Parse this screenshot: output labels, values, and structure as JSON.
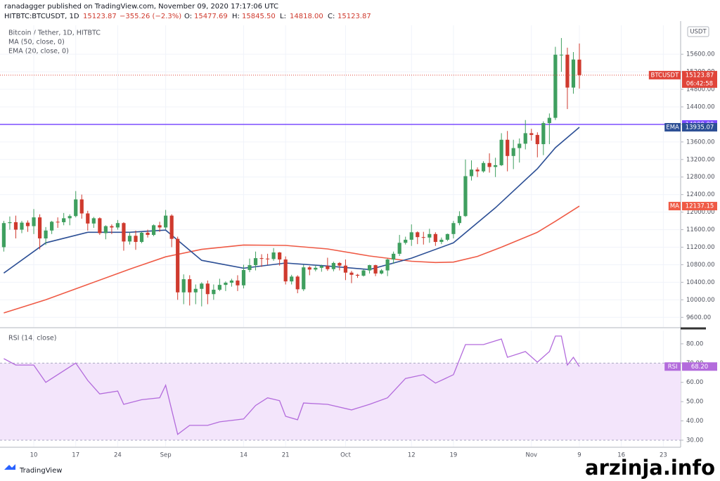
{
  "header": {
    "published": "ranadagger published on TradingView.com, November 09, 2020 17:17:06 UTC",
    "symbol": "HITBTC:BTCUSDT, 1D",
    "last": "15123.87",
    "change": "−355.26 (−2.3%)",
    "fields": [
      {
        "k": "O:",
        "v": "15477.69"
      },
      {
        "k": "H:",
        "v": "15845.50"
      },
      {
        "k": "L:",
        "v": "14818.00"
      },
      {
        "k": "C:",
        "v": "15123.87"
      }
    ]
  },
  "chart_data": {
    "type": "candlestick",
    "title": "Bitcoin / Tether, 1D, HITBTC",
    "currency": "USDT",
    "countdown": "06:42:58",
    "up_color": "#3f9f5f",
    "down_color": "#cf3a2e",
    "grid": true,
    "x": [
      "08-05",
      "08-06",
      "08-07",
      "08-08",
      "08-09",
      "08-10",
      "08-11",
      "08-12",
      "08-13",
      "08-14",
      "08-15",
      "08-16",
      "08-17",
      "08-18",
      "08-19",
      "08-20",
      "08-21",
      "08-22",
      "08-23",
      "08-24",
      "08-25",
      "08-26",
      "08-27",
      "08-28",
      "08-29",
      "08-30",
      "08-31",
      "09-01",
      "09-02",
      "09-03",
      "09-04",
      "09-05",
      "09-06",
      "09-07",
      "09-08",
      "09-09",
      "09-10",
      "09-11",
      "09-12",
      "09-13",
      "09-14",
      "09-15",
      "09-16",
      "09-17",
      "09-18",
      "09-19",
      "09-20",
      "09-21",
      "09-22",
      "09-23",
      "09-24",
      "09-25",
      "09-26",
      "09-27",
      "09-28",
      "09-29",
      "09-30",
      "10-01",
      "10-02",
      "10-03",
      "10-04",
      "10-05",
      "10-06",
      "10-07",
      "10-08",
      "10-09",
      "10-10",
      "10-11",
      "10-12",
      "10-13",
      "10-14",
      "10-15",
      "10-16",
      "10-17",
      "10-18",
      "10-19",
      "10-20",
      "10-21",
      "10-22",
      "10-23",
      "10-24",
      "10-25",
      "10-26",
      "10-27",
      "10-28",
      "10-29",
      "10-30",
      "10-31",
      "11-01",
      "11-02",
      "11-03",
      "11-04",
      "11-05",
      "11-06",
      "11-07",
      "11-08",
      "11-09"
    ],
    "ohlc": [
      [
        11200,
        11800,
        11100,
        11750
      ],
      [
        11750,
        11900,
        11600,
        11770
      ],
      [
        11770,
        11920,
        11400,
        11600
      ],
      [
        11600,
        11800,
        11520,
        11760
      ],
      [
        11760,
        11810,
        11550,
        11680
      ],
      [
        11680,
        12070,
        11500,
        11880
      ],
      [
        11880,
        11950,
        11150,
        11400
      ],
      [
        11400,
        11660,
        11250,
        11580
      ],
      [
        11580,
        11800,
        11500,
        11780
      ],
      [
        11780,
        11880,
        11640,
        11770
      ],
      [
        11770,
        11980,
        11700,
        11860
      ],
      [
        11860,
        11950,
        11700,
        11910
      ],
      [
        11910,
        12480,
        11880,
        12290
      ],
      [
        12290,
        12400,
        11850,
        11970
      ],
      [
        11970,
        12030,
        11580,
        11740
      ],
      [
        11740,
        11890,
        11640,
        11860
      ],
      [
        11860,
        11880,
        11480,
        11520
      ],
      [
        11520,
        11700,
        11380,
        11680
      ],
      [
        11680,
        11720,
        11500,
        11650
      ],
      [
        11650,
        11820,
        11600,
        11750
      ],
      [
        11750,
        11770,
        11120,
        11330
      ],
      [
        11330,
        11540,
        11260,
        11460
      ],
      [
        11460,
        11580,
        11140,
        11320
      ],
      [
        11320,
        11550,
        11290,
        11530
      ],
      [
        11530,
        11600,
        11420,
        11480
      ],
      [
        11480,
        11720,
        11450,
        11700
      ],
      [
        11700,
        11780,
        11550,
        11650
      ],
      [
        11650,
        12050,
        11600,
        11920
      ],
      [
        11920,
        11950,
        11200,
        11390
      ],
      [
        11390,
        11440,
        10000,
        10170
      ],
      [
        10170,
        10580,
        9900,
        10470
      ],
      [
        10470,
        10560,
        9870,
        10170
      ],
      [
        10170,
        10350,
        9900,
        10250
      ],
      [
        10250,
        10400,
        9850,
        10370
      ],
      [
        10370,
        10440,
        9900,
        10130
      ],
      [
        10130,
        10350,
        10000,
        10230
      ],
      [
        10230,
        10480,
        10200,
        10340
      ],
      [
        10340,
        10420,
        10200,
        10390
      ],
      [
        10390,
        10480,
        10300,
        10440
      ],
      [
        10440,
        10560,
        10200,
        10330
      ],
      [
        10330,
        10800,
        10260,
        10680
      ],
      [
        10680,
        10940,
        10630,
        10790
      ],
      [
        10790,
        11100,
        10670,
        10950
      ],
      [
        10950,
        11040,
        10750,
        10940
      ],
      [
        10940,
        11050,
        10800,
        10930
      ],
      [
        10930,
        11180,
        10890,
        11080
      ],
      [
        11080,
        11090,
        10780,
        10920
      ],
      [
        10920,
        10990,
        10350,
        10420
      ],
      [
        10420,
        10570,
        10350,
        10530
      ],
      [
        10530,
        10560,
        10150,
        10240
      ],
      [
        10240,
        10800,
        10200,
        10740
      ],
      [
        10740,
        10770,
        10560,
        10690
      ],
      [
        10690,
        10790,
        10650,
        10730
      ],
      [
        10730,
        10800,
        10640,
        10770
      ],
      [
        10770,
        10960,
        10660,
        10700
      ],
      [
        10700,
        10870,
        10650,
        10840
      ],
      [
        10840,
        10860,
        10670,
        10780
      ],
      [
        10780,
        10920,
        10450,
        10620
      ],
      [
        10620,
        10660,
        10380,
        10570
      ],
      [
        10570,
        10590,
        10500,
        10550
      ],
      [
        10550,
        10700,
        10530,
        10670
      ],
      [
        10670,
        10800,
        10600,
        10790
      ],
      [
        10790,
        10800,
        10540,
        10600
      ],
      [
        10600,
        10700,
        10580,
        10670
      ],
      [
        10670,
        10940,
        10540,
        10920
      ],
      [
        10920,
        11100,
        10820,
        11050
      ],
      [
        11050,
        11480,
        11000,
        11300
      ],
      [
        11300,
        11440,
        11260,
        11370
      ],
      [
        11370,
        11720,
        11230,
        11540
      ],
      [
        11540,
        11560,
        11270,
        11430
      ],
      [
        11430,
        11550,
        11260,
        11420
      ],
      [
        11420,
        11620,
        11300,
        11500
      ],
      [
        11500,
        11540,
        11230,
        11320
      ],
      [
        11320,
        11420,
        11270,
        11370
      ],
      [
        11370,
        11510,
        11340,
        11500
      ],
      [
        11500,
        11800,
        11400,
        11750
      ],
      [
        11750,
        12020,
        11700,
        11910
      ],
      [
        11910,
        13200,
        11890,
        12820
      ],
      [
        12820,
        13180,
        12720,
        12970
      ],
      [
        12970,
        13020,
        12800,
        12930
      ],
      [
        12930,
        13160,
        12900,
        13120
      ],
      [
        13120,
        13340,
        12900,
        13030
      ],
      [
        13030,
        13240,
        12800,
        13070
      ],
      [
        13070,
        13800,
        13050,
        13650
      ],
      [
        13650,
        13850,
        12930,
        13280
      ],
      [
        13280,
        13650,
        12980,
        13460
      ],
      [
        13460,
        13680,
        13130,
        13560
      ],
      [
        13560,
        14100,
        13430,
        13800
      ],
      [
        13800,
        13900,
        13630,
        13760
      ],
      [
        13760,
        13820,
        13250,
        13550
      ],
      [
        13550,
        14070,
        13300,
        14030
      ],
      [
        14030,
        14250,
        13550,
        14150
      ],
      [
        14150,
        15770,
        14100,
        15590
      ],
      [
        15590,
        15970,
        15200,
        15590
      ],
      [
        15590,
        15750,
        14350,
        14840
      ],
      [
        14840,
        15650,
        14700,
        15480
      ],
      [
        15477.69,
        15845.5,
        14818,
        15123.87
      ]
    ],
    "series": [
      {
        "name": "MA (50, close, 0)",
        "tag": "MA",
        "color": "#ef5a45",
        "x": [
          "08-05",
          "08-12",
          "08-19",
          "08-26",
          "09-01",
          "09-07",
          "09-14",
          "09-21",
          "09-28",
          "10-05",
          "10-12",
          "10-16",
          "10-19",
          "10-23",
          "10-27",
          "11-02",
          "11-05",
          "11-09"
        ],
        "values": [
          9700,
          10000,
          10350,
          10700,
          10980,
          11150,
          11250,
          11240,
          11160,
          11000,
          10880,
          10850,
          10860,
          10990,
          11200,
          11540,
          11790,
          12137.15
        ]
      },
      {
        "name": "EMA (20, close, 0)",
        "tag": "EMA",
        "color": "#2c4f95",
        "x": [
          "08-05",
          "08-12",
          "08-19",
          "08-26",
          "09-01",
          "09-07",
          "09-14",
          "09-21",
          "09-28",
          "10-05",
          "10-12",
          "10-19",
          "10-26",
          "11-02",
          "11-05",
          "11-09"
        ],
        "values": [
          10610,
          11300,
          11540,
          11540,
          11590,
          10900,
          10720,
          10840,
          10770,
          10690,
          10950,
          11300,
          12100,
          12990,
          13470,
          13935.07
        ]
      }
    ],
    "ylim": [
      9380,
      16260
    ],
    "yticks": [
      {
        "value": 9600,
        "label": "9600.00"
      },
      {
        "value": 10000,
        "label": "10000.00"
      },
      {
        "value": 10400,
        "label": "10400.00"
      },
      {
        "value": 10800,
        "label": "10800.00"
      },
      {
        "value": 11200,
        "label": "11200.00"
      },
      {
        "value": 11600,
        "label": "11600.00"
      },
      {
        "value": 12000,
        "label": "12000.00"
      },
      {
        "value": 12400,
        "label": "12400.00"
      },
      {
        "value": 12800,
        "label": "12800.00"
      },
      {
        "value": 13200,
        "label": "13200.00"
      },
      {
        "value": 13600,
        "label": "13600.00"
      },
      {
        "value": 14000,
        "label": "14000.00"
      },
      {
        "value": 14400,
        "label": "14400.00"
      },
      {
        "value": 14800,
        "label": "14800.00"
      },
      {
        "value": 15200,
        "label": "15200.00"
      },
      {
        "value": 15600,
        "label": "15600.00"
      }
    ],
    "hline": {
      "value": 14000,
      "label": "14000.00",
      "color": "#7c4dff"
    },
    "last_tag": {
      "name": "BTCUSDT",
      "color": "#e0453a"
    },
    "xticks": [
      {
        "value": "08-10",
        "label": "10"
      },
      {
        "value": "08-17",
        "label": "17"
      },
      {
        "value": "08-24",
        "label": "24"
      },
      {
        "value": "09-01",
        "label": "Sep"
      },
      {
        "value": "09-14",
        "label": "14"
      },
      {
        "value": "09-21",
        "label": "21"
      },
      {
        "value": "10-01",
        "label": "Oct"
      },
      {
        "value": "10-12",
        "label": "12"
      },
      {
        "value": "10-19",
        "label": "19"
      },
      {
        "value": "11-01",
        "label": "Nov"
      },
      {
        "value": "11-09",
        "label": "9"
      },
      {
        "value": "11-16",
        "label": "16"
      },
      {
        "value": "11-23",
        "label": "23"
      }
    ],
    "rsi": {
      "name": "RSI (14, close)",
      "tag": "RSI",
      "color": "#b36bdc",
      "band": [
        30,
        70
      ],
      "x": [
        "08-05",
        "08-07",
        "08-10",
        "08-12",
        "08-17",
        "08-19",
        "08-21",
        "08-24",
        "08-25",
        "08-28",
        "08-31",
        "09-01",
        "09-03",
        "09-05",
        "09-08",
        "09-10",
        "09-14",
        "09-16",
        "09-18",
        "09-20",
        "09-21",
        "09-23",
        "09-24",
        "09-28",
        "10-02",
        "10-05",
        "10-08",
        "10-11",
        "10-14",
        "10-16",
        "10-19",
        "10-21",
        "10-24",
        "10-27",
        "10-28",
        "10-31",
        "11-02",
        "11-04",
        "11-05",
        "11-06",
        "11-07",
        "11-08",
        "11-09"
      ],
      "values": [
        72.3,
        69,
        69,
        60,
        70,
        61,
        54,
        55.5,
        48.6,
        51,
        52,
        58.5,
        33,
        37.7,
        37.7,
        39.5,
        41,
        48,
        52,
        50.5,
        42.4,
        40.6,
        49.3,
        48.6,
        45.7,
        48.6,
        52,
        62,
        64,
        59.6,
        64,
        79.6,
        79.6,
        82.5,
        73,
        76,
        70.5,
        76,
        84,
        84,
        69,
        73,
        68.2
      ],
      "last": {
        "value": 68.2,
        "label": "68.20"
      },
      "ylim": [
        26.7,
        86.9
      ],
      "yticks": [
        {
          "value": 30,
          "label": "30.00"
        },
        {
          "value": 40,
          "label": "40.00"
        },
        {
          "value": 50,
          "label": "50.00"
        },
        {
          "value": 60,
          "label": "60.00"
        },
        {
          "value": 70,
          "label": "70.00"
        },
        {
          "value": 80,
          "label": "80.00"
        }
      ]
    }
  },
  "footer": {
    "brand": "TradingView",
    "watermark": "arzinja.info"
  }
}
